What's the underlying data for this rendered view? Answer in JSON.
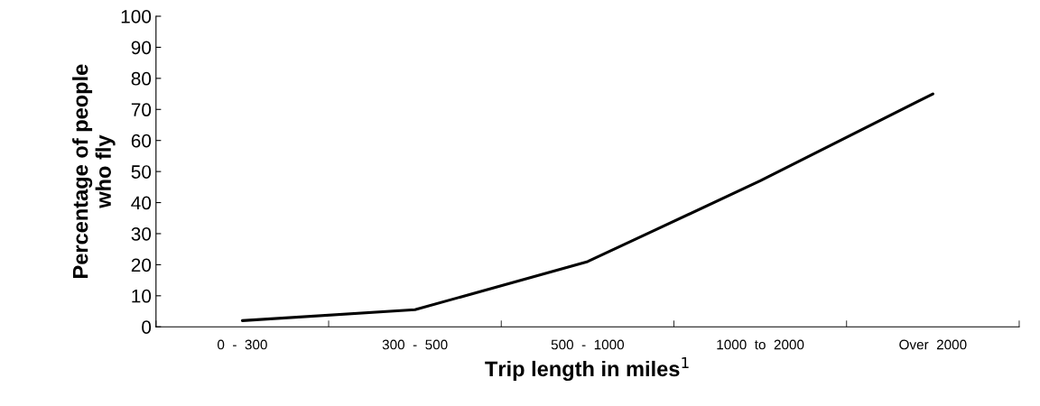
{
  "chart_data": {
    "type": "line",
    "xlabel": "Trip length in miles$^{1}$",
    "ylabel": "Percentage of people\nwho fly",
    "categories": [
      "0  -  300",
      "300  -  500",
      "500  -  1000",
      "1000  to  2000",
      "Over  2000"
    ],
    "series": [
      {
        "color": "#000000",
        "values": [
          2,
          5.5,
          21,
          47,
          75
        ]
      }
    ],
    "ylim": [
      0,
      100
    ],
    "yticks": [
      0,
      10,
      20,
      30,
      40,
      50,
      60,
      70,
      80,
      90,
      100
    ],
    "grid": false,
    "legend": false,
    "marker": "none",
    "line_style": "solid"
  }
}
